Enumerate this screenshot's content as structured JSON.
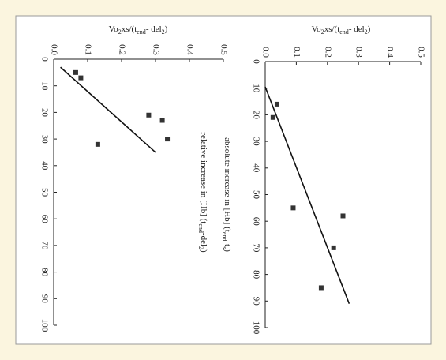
{
  "chart_data": [
    {
      "type": "scatter",
      "title_segments": [
        "Vo",
        "2",
        "xs/(t",
        "end",
        "- del",
        "2",
        ")"
      ],
      "x_label_segments": [
        "relative increase in [Hb] (t",
        "end",
        "-del",
        "2",
        ")"
      ],
      "xlim": [
        0,
        100
      ],
      "xticks": [
        0,
        10,
        20,
        30,
        40,
        50,
        60,
        70,
        80,
        90,
        100
      ],
      "ylim": [
        0,
        0.5
      ],
      "yticks": [
        {
          "value": 0,
          "label": "0.0"
        },
        0.1,
        0.2,
        0.3,
        0.4,
        0.5
      ],
      "points": {
        "color": "#333333",
        "x": [
          5,
          7,
          21,
          23,
          30,
          32
        ],
        "values": [
          0.065,
          0.08,
          0.28,
          0.32,
          0.335,
          0.13
        ]
      },
      "fit": {
        "color": "#111111",
        "x": [
          3,
          35
        ],
        "values": [
          0.02,
          0.3
        ]
      }
    },
    {
      "type": "scatter",
      "title_segments": [
        "Vo",
        "2",
        "xs/(t",
        "end",
        "- del",
        "2",
        ")"
      ],
      "x_label_segments": [
        "absolute increase in [Hb] (t",
        "end",
        "-t",
        "s",
        ")"
      ],
      "xlim": [
        0,
        100
      ],
      "xticks": [
        0,
        10,
        20,
        30,
        40,
        50,
        60,
        70,
        80,
        90,
        100
      ],
      "ylim": [
        0,
        0.5
      ],
      "yticks": [
        {
          "value": 0,
          "label": "0.0"
        },
        0.1,
        0.2,
        0.3,
        0.4,
        0.5
      ],
      "points": {
        "color": "#333333",
        "x": [
          16,
          21,
          55,
          58,
          70,
          85
        ],
        "values": [
          0.038,
          0.025,
          0.09,
          0.25,
          0.22,
          0.18
        ]
      },
      "fit": {
        "color": "#111111",
        "x": [
          9.5,
          91
        ],
        "values": [
          0,
          0.27
        ]
      }
    }
  ]
}
